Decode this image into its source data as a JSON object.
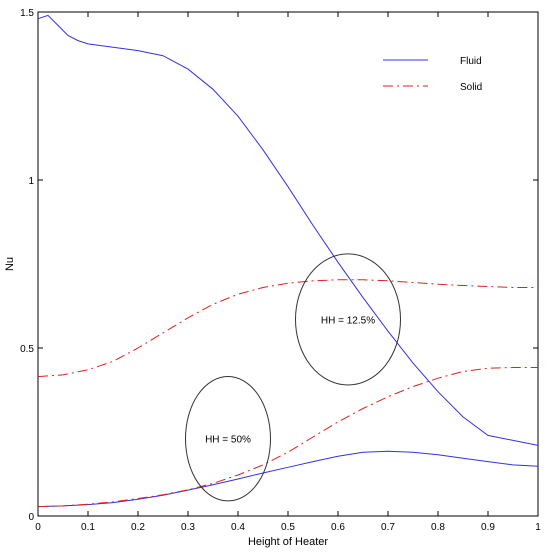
{
  "chart_data": {
    "type": "line",
    "xlabel": "Height of Heater",
    "ylabel": "Nu",
    "xlim": [
      0,
      1
    ],
    "ylim": [
      0,
      1.5
    ],
    "x_ticks": [
      "0",
      "0.1",
      "0.2",
      "0.3",
      "0.4",
      "0.5",
      "0.6",
      "0.7",
      "0.8",
      "0.9",
      "1"
    ],
    "y_ticks": [
      "0",
      "0.5",
      "1",
      "1.5"
    ],
    "legend_position": "top-right",
    "legend": [
      {
        "label": "Fluid",
        "color": "#3333dd",
        "style": "solid"
      },
      {
        "label": "Solid",
        "color": "#dd2222",
        "style": "dashdot"
      }
    ],
    "annotations": [
      {
        "text": "HH = 12.5%",
        "cx": 0.62,
        "cy": 0.585,
        "rx": 0.105,
        "ry": 0.195
      },
      {
        "text": "HH = 50%",
        "cx": 0.38,
        "cy": 0.23,
        "rx": 0.085,
        "ry": 0.185
      }
    ],
    "series": [
      {
        "name": "Fluid",
        "group": "HH = 12.5%",
        "color": "#3333dd",
        "style": "solid",
        "x": [
          0,
          0.02,
          0.04,
          0.06,
          0.08,
          0.1,
          0.15,
          0.2,
          0.25,
          0.3,
          0.35,
          0.4,
          0.45,
          0.5,
          0.55,
          0.6,
          0.65,
          0.7,
          0.75,
          0.8,
          0.85,
          0.9,
          0.95,
          1.0
        ],
        "y": [
          1.48,
          1.49,
          1.46,
          1.43,
          1.415,
          1.405,
          1.395,
          1.385,
          1.37,
          1.33,
          1.27,
          1.19,
          1.09,
          0.98,
          0.865,
          0.755,
          0.65,
          0.55,
          0.455,
          0.37,
          0.295,
          0.24,
          0.225,
          0.21
        ]
      },
      {
        "name": "Solid",
        "group": "HH = 12.5%",
        "color": "#dd2222",
        "style": "dashdot",
        "x": [
          0,
          0.05,
          0.1,
          0.15,
          0.2,
          0.25,
          0.3,
          0.35,
          0.4,
          0.45,
          0.5,
          0.55,
          0.6,
          0.65,
          0.7,
          0.75,
          0.8,
          0.85,
          0.9,
          0.95,
          1.0
        ],
        "y": [
          0.415,
          0.42,
          0.435,
          0.46,
          0.5,
          0.545,
          0.59,
          0.63,
          0.66,
          0.68,
          0.693,
          0.7,
          0.703,
          0.703,
          0.7,
          0.695,
          0.69,
          0.686,
          0.683,
          0.68,
          0.68
        ]
      },
      {
        "name": "Fluid",
        "group": "HH = 50%",
        "color": "#3333dd",
        "style": "solid",
        "x": [
          0,
          0.05,
          0.1,
          0.15,
          0.2,
          0.25,
          0.3,
          0.35,
          0.4,
          0.45,
          0.5,
          0.55,
          0.6,
          0.65,
          0.7,
          0.75,
          0.8,
          0.85,
          0.9,
          0.95,
          1.0
        ],
        "y": [
          0.028,
          0.03,
          0.034,
          0.04,
          0.05,
          0.062,
          0.077,
          0.093,
          0.11,
          0.128,
          0.145,
          0.162,
          0.178,
          0.19,
          0.193,
          0.19,
          0.182,
          0.172,
          0.162,
          0.152,
          0.148
        ]
      },
      {
        "name": "Solid",
        "group": "HH = 50%",
        "color": "#dd2222",
        "style": "dashdot",
        "x": [
          0,
          0.05,
          0.1,
          0.15,
          0.2,
          0.25,
          0.3,
          0.35,
          0.4,
          0.45,
          0.5,
          0.55,
          0.6,
          0.65,
          0.7,
          0.75,
          0.8,
          0.85,
          0.9,
          0.95,
          1.0
        ],
        "y": [
          0.028,
          0.03,
          0.035,
          0.042,
          0.052,
          0.063,
          0.078,
          0.097,
          0.122,
          0.152,
          0.19,
          0.235,
          0.28,
          0.32,
          0.355,
          0.385,
          0.41,
          0.43,
          0.44,
          0.442,
          0.442
        ]
      }
    ]
  }
}
